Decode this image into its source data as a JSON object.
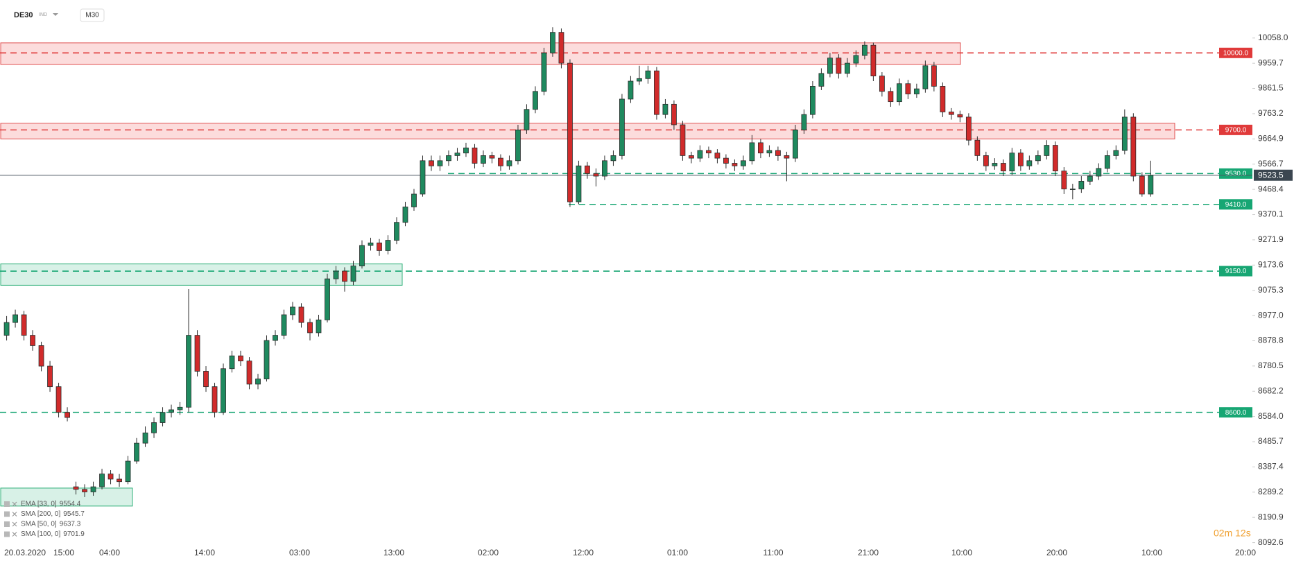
{
  "chart_data": {
    "type": "candlestick",
    "symbol": "DE30",
    "symbol_tag": "IND",
    "timeframe": "M30",
    "timer": "02m 12s",
    "up_color": "#1f8a5f",
    "down_color": "#d12b2b",
    "ylim": [
      8078,
      10206
    ],
    "yticks": [
      {
        "value": 10058,
        "label": "10058.0"
      },
      9959.7,
      9861.5,
      9763.2,
      9664.9,
      9566.7,
      9468.4,
      9370.1,
      9271.9,
      9173.6,
      9075.3,
      {
        "value": 8977,
        "label": "8977.0"
      },
      8878.8,
      8780.5,
      8682.2,
      {
        "value": 8584,
        "label": "8584.0"
      },
      8485.7,
      8387.4,
      8289.2,
      8190.9,
      8092.6
    ],
    "x_labels": [
      "20.03.2020",
      "15:00",
      "04:00",
      "14:00",
      "03:00",
      "13:00",
      "02:00",
      "12:00",
      "01:00",
      "11:00",
      "21:00",
      "10:00",
      "20:00",
      "10:00",
      "20:00"
    ],
    "current_price": 9523.5,
    "levels": [
      {
        "value": 10000,
        "label": "10000.0",
        "color": "#e03a3a"
      },
      {
        "value": 9700,
        "label": "9700.0",
        "color": "#e03a3a"
      },
      {
        "value": 9530,
        "label": "9530.0",
        "color": "#17a673"
      },
      {
        "value": 9410,
        "label": "9410.0",
        "color": "#17a673"
      },
      {
        "value": 9150,
        "label": "9150.0",
        "color": "#17a673"
      },
      {
        "value": 8600,
        "label": "8600.0",
        "color": "#17a673"
      }
    ],
    "zones": [
      {
        "low": 9955,
        "high": 10039,
        "color": "red"
      },
      {
        "low": 9665,
        "high": 9726,
        "color": "red"
      },
      {
        "low": 9095,
        "high": 9178,
        "color": "green"
      },
      {
        "low": 8235,
        "high": 8305,
        "color": "green"
      }
    ],
    "indicators": [
      {
        "label": "EMA [33, 0]",
        "value": 9554.4
      },
      {
        "label": "SMA [200, 0]",
        "value": 9545.7
      },
      {
        "label": "SMA [50, 0]",
        "value": 9637.3
      },
      {
        "label": "SMA [100, 0]",
        "value": 9701.9
      }
    ],
    "candles": [
      [
        8900,
        8975,
        8880,
        8950
      ],
      [
        8950,
        9000,
        8930,
        8980
      ],
      [
        8980,
        8995,
        8880,
        8900
      ],
      [
        8900,
        8920,
        8840,
        8860
      ],
      [
        8860,
        8875,
        8760,
        8780
      ],
      [
        8780,
        8800,
        8680,
        8700
      ],
      [
        8700,
        8715,
        8580,
        8600
      ],
      [
        8600,
        8620,
        8565,
        8580
      ],
      [
        8310,
        8330,
        8280,
        8300
      ],
      [
        8300,
        8320,
        8270,
        8290
      ],
      [
        8290,
        8330,
        8275,
        8310
      ],
      [
        8310,
        8380,
        8300,
        8360
      ],
      [
        8360,
        8375,
        8320,
        8340
      ],
      [
        8340,
        8360,
        8310,
        8330
      ],
      [
        8330,
        8430,
        8320,
        8410
      ],
      [
        8410,
        8500,
        8400,
        8480
      ],
      [
        8480,
        8545,
        8465,
        8520
      ],
      [
        8520,
        8580,
        8500,
        8560
      ],
      [
        8560,
        8620,
        8545,
        8600
      ],
      [
        8600,
        8630,
        8580,
        8610
      ],
      [
        8610,
        8640,
        8590,
        8620
      ],
      [
        8620,
        9080,
        8600,
        8900
      ],
      [
        8900,
        8920,
        8740,
        8760
      ],
      [
        8760,
        8780,
        8680,
        8700
      ],
      [
        8700,
        8715,
        8580,
        8600
      ],
      [
        8600,
        8790,
        8590,
        8770
      ],
      [
        8770,
        8840,
        8755,
        8820
      ],
      [
        8820,
        8840,
        8780,
        8800
      ],
      [
        8800,
        8815,
        8690,
        8710
      ],
      [
        8710,
        8750,
        8690,
        8730
      ],
      [
        8730,
        8900,
        8720,
        8880
      ],
      [
        8880,
        8920,
        8860,
        8900
      ],
      [
        8900,
        9000,
        8885,
        8980
      ],
      [
        8980,
        9030,
        8960,
        9010
      ],
      [
        9010,
        9025,
        8930,
        8950
      ],
      [
        8950,
        8965,
        8880,
        8910
      ],
      [
        8910,
        8980,
        8895,
        8960
      ],
      [
        8960,
        9140,
        8950,
        9120
      ],
      [
        9120,
        9170,
        9100,
        9150
      ],
      [
        9150,
        9165,
        9070,
        9110
      ],
      [
        9110,
        9190,
        9095,
        9170
      ],
      [
        9170,
        9270,
        9160,
        9250
      ],
      [
        9250,
        9280,
        9230,
        9260
      ],
      [
        9260,
        9275,
        9210,
        9230
      ],
      [
        9230,
        9290,
        9215,
        9270
      ],
      [
        9270,
        9360,
        9255,
        9340
      ],
      [
        9340,
        9420,
        9325,
        9400
      ],
      [
        9400,
        9470,
        9385,
        9450
      ],
      [
        9450,
        9600,
        9440,
        9580
      ],
      [
        9580,
        9600,
        9540,
        9560
      ],
      [
        9560,
        9600,
        9540,
        9580
      ],
      [
        9580,
        9620,
        9560,
        9600
      ],
      [
        9600,
        9630,
        9580,
        9610
      ],
      [
        9610,
        9650,
        9595,
        9630
      ],
      [
        9630,
        9645,
        9550,
        9570
      ],
      [
        9570,
        9620,
        9555,
        9600
      ],
      [
        9600,
        9615,
        9570,
        9590
      ],
      [
        9590,
        9605,
        9540,
        9560
      ],
      [
        9560,
        9600,
        9545,
        9580
      ],
      [
        9580,
        9720,
        9565,
        9700
      ],
      [
        9700,
        9800,
        9685,
        9780
      ],
      [
        9780,
        9870,
        9765,
        9850
      ],
      [
        9850,
        10020,
        9835,
        10000
      ],
      [
        10000,
        10100,
        9985,
        10080
      ],
      [
        10080,
        10095,
        9940,
        9960
      ],
      [
        9960,
        9975,
        9400,
        9420
      ],
      [
        9420,
        9580,
        9410,
        9560
      ],
      [
        9560,
        9575,
        9510,
        9530
      ],
      [
        9530,
        9550,
        9480,
        9520
      ],
      [
        9520,
        9600,
        9505,
        9580
      ],
      [
        9580,
        9620,
        9560,
        9600
      ],
      [
        9600,
        9840,
        9585,
        9820
      ],
      [
        9820,
        9910,
        9805,
        9890
      ],
      [
        9890,
        9950,
        9875,
        9900
      ],
      [
        9900,
        9950,
        9880,
        9930
      ],
      [
        9930,
        9945,
        9740,
        9760
      ],
      [
        9760,
        9820,
        9745,
        9800
      ],
      [
        9800,
        9815,
        9700,
        9720
      ],
      [
        9720,
        9735,
        9580,
        9600
      ],
      [
        9600,
        9615,
        9570,
        9590
      ],
      [
        9590,
        9640,
        9575,
        9620
      ],
      [
        9620,
        9635,
        9590,
        9610
      ],
      [
        9610,
        9625,
        9570,
        9590
      ],
      [
        9590,
        9605,
        9550,
        9570
      ],
      [
        9570,
        9585,
        9540,
        9560
      ],
      [
        9560,
        9600,
        9545,
        9580
      ],
      [
        9580,
        9680,
        9565,
        9650
      ],
      [
        9650,
        9665,
        9590,
        9610
      ],
      [
        9610,
        9640,
        9595,
        9620
      ],
      [
        9620,
        9635,
        9580,
        9600
      ],
      [
        9600,
        9615,
        9500,
        9590
      ],
      [
        9590,
        9720,
        9575,
        9700
      ],
      [
        9700,
        9780,
        9685,
        9760
      ],
      [
        9760,
        9890,
        9745,
        9870
      ],
      [
        9870,
        9940,
        9855,
        9920
      ],
      [
        9920,
        10000,
        9905,
        9980
      ],
      [
        9980,
        9995,
        9900,
        9920
      ],
      [
        9920,
        9980,
        9905,
        9960
      ],
      [
        9960,
        10010,
        9945,
        9990
      ],
      [
        9990,
        10045,
        9975,
        10030
      ],
      [
        10030,
        10040,
        9890,
        9910
      ],
      [
        9910,
        9925,
        9830,
        9850
      ],
      [
        9850,
        9865,
        9790,
        9810
      ],
      [
        9810,
        9900,
        9795,
        9880
      ],
      [
        9880,
        9895,
        9820,
        9840
      ],
      [
        9840,
        9880,
        9825,
        9860
      ],
      [
        9860,
        9970,
        9845,
        9950
      ],
      [
        9950,
        9965,
        9850,
        9870
      ],
      [
        9870,
        9885,
        9750,
        9770
      ],
      [
        9770,
        9785,
        9740,
        9760
      ],
      [
        9760,
        9775,
        9730,
        9750
      ],
      [
        9750,
        9765,
        9640,
        9660
      ],
      [
        9660,
        9675,
        9580,
        9600
      ],
      [
        9600,
        9615,
        9540,
        9560
      ],
      [
        9560,
        9590,
        9545,
        9570
      ],
      [
        9570,
        9585,
        9520,
        9540
      ],
      [
        9540,
        9630,
        9525,
        9610
      ],
      [
        9610,
        9625,
        9540,
        9560
      ],
      [
        9560,
        9600,
        9545,
        9580
      ],
      [
        9580,
        9620,
        9565,
        9600
      ],
      [
        9600,
        9660,
        9585,
        9640
      ],
      [
        9640,
        9655,
        9520,
        9540
      ],
      [
        9540,
        9555,
        9450,
        9470
      ],
      [
        9470,
        9490,
        9430,
        9470
      ],
      [
        9470,
        9520,
        9455,
        9500
      ],
      [
        9500,
        9540,
        9485,
        9520
      ],
      [
        9520,
        9570,
        9505,
        9550
      ],
      [
        9550,
        9620,
        9535,
        9600
      ],
      [
        9600,
        9640,
        9585,
        9620
      ],
      [
        9620,
        9780,
        9605,
        9750
      ],
      [
        9750,
        9765,
        9500,
        9520
      ],
      [
        9520,
        9535,
        9440,
        9450
      ],
      [
        9450,
        9580,
        9440,
        9523.5
      ]
    ]
  }
}
